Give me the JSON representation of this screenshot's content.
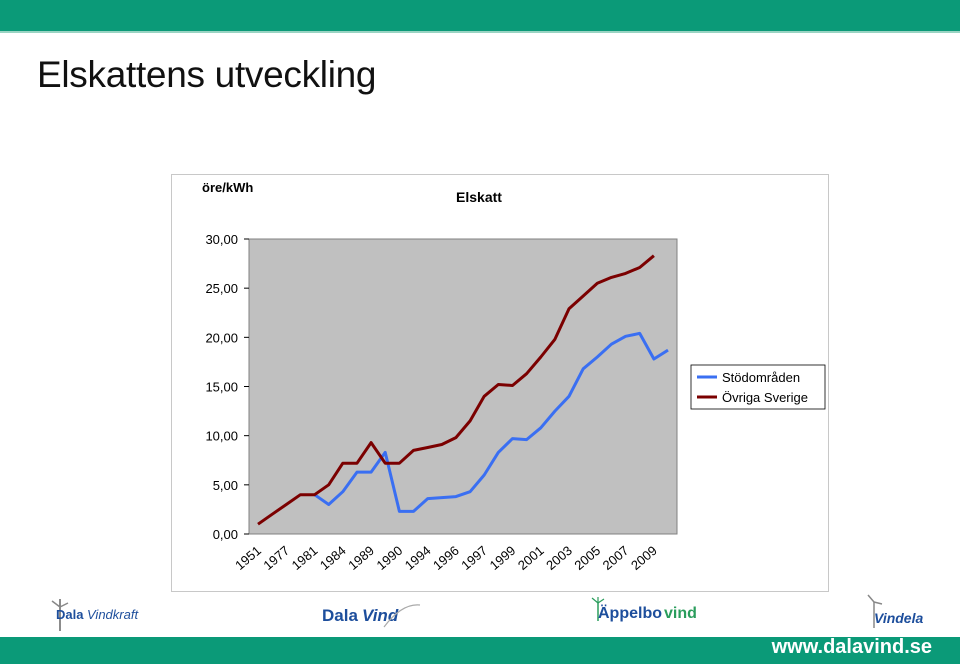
{
  "page": {
    "title": "Elskattens utveckling"
  },
  "logos": [
    {
      "name": "dalavindkraft",
      "main": "Dala",
      "sub": "Vindkraft"
    },
    {
      "name": "dalavind",
      "main": "Dala",
      "sub": "Vind"
    },
    {
      "name": "appelbovind",
      "main": "Äppelbo",
      "sub": "vind"
    },
    {
      "name": "vindela",
      "main": "",
      "sub": "Vindela"
    }
  ],
  "footer": {
    "website": "www.dalavind.se"
  },
  "colors": {
    "band": "#0b9a78",
    "series_blue": "#3a6ff2",
    "series_red": "#7b0000",
    "plot_bg": "#c0c0c0"
  },
  "chart_data": {
    "type": "line",
    "title": "Elskatt",
    "ylabel": "öre/kWh",
    "xlabel": "",
    "ylim": [
      0,
      30
    ],
    "yticks": [
      "0,00",
      "5,00",
      "10,00",
      "15,00",
      "20,00",
      "25,00",
      "30,00"
    ],
    "ytick_values": [
      0,
      5,
      10,
      15,
      20,
      25,
      30
    ],
    "xtick_labels": [
      "1951",
      "1977",
      "1981",
      "1984",
      "1989",
      "1990",
      "1994",
      "1996",
      "1997",
      "1999",
      "2001",
      "2003",
      "2005",
      "2007",
      "2009"
    ],
    "n_points": 30,
    "legend_position": "right",
    "grid": false,
    "series": [
      {
        "name": "Stödområden",
        "color": "#3a6ff2",
        "values": [
          1.0,
          null,
          null,
          null,
          4.0,
          3.0,
          4.3,
          6.3,
          6.3,
          8.3,
          2.3,
          2.3,
          3.6,
          3.7,
          3.8,
          4.3,
          6.0,
          8.3,
          9.7,
          9.6,
          10.8,
          12.5,
          14.0,
          16.8,
          18.0,
          19.3,
          20.1,
          20.4,
          17.8,
          18.7
        ]
      },
      {
        "name": "Övriga Sverige",
        "color": "#7b0000",
        "values": [
          1.0,
          2.0,
          3.0,
          4.0,
          4.0,
          5.0,
          7.2,
          7.2,
          9.3,
          7.2,
          7.2,
          8.5,
          8.8,
          9.1,
          9.8,
          11.5,
          14.0,
          15.2,
          15.1,
          16.3,
          18.0,
          19.8,
          22.9,
          24.2,
          25.5,
          26.1,
          26.5,
          27.1,
          28.3,
          null
        ]
      }
    ]
  }
}
